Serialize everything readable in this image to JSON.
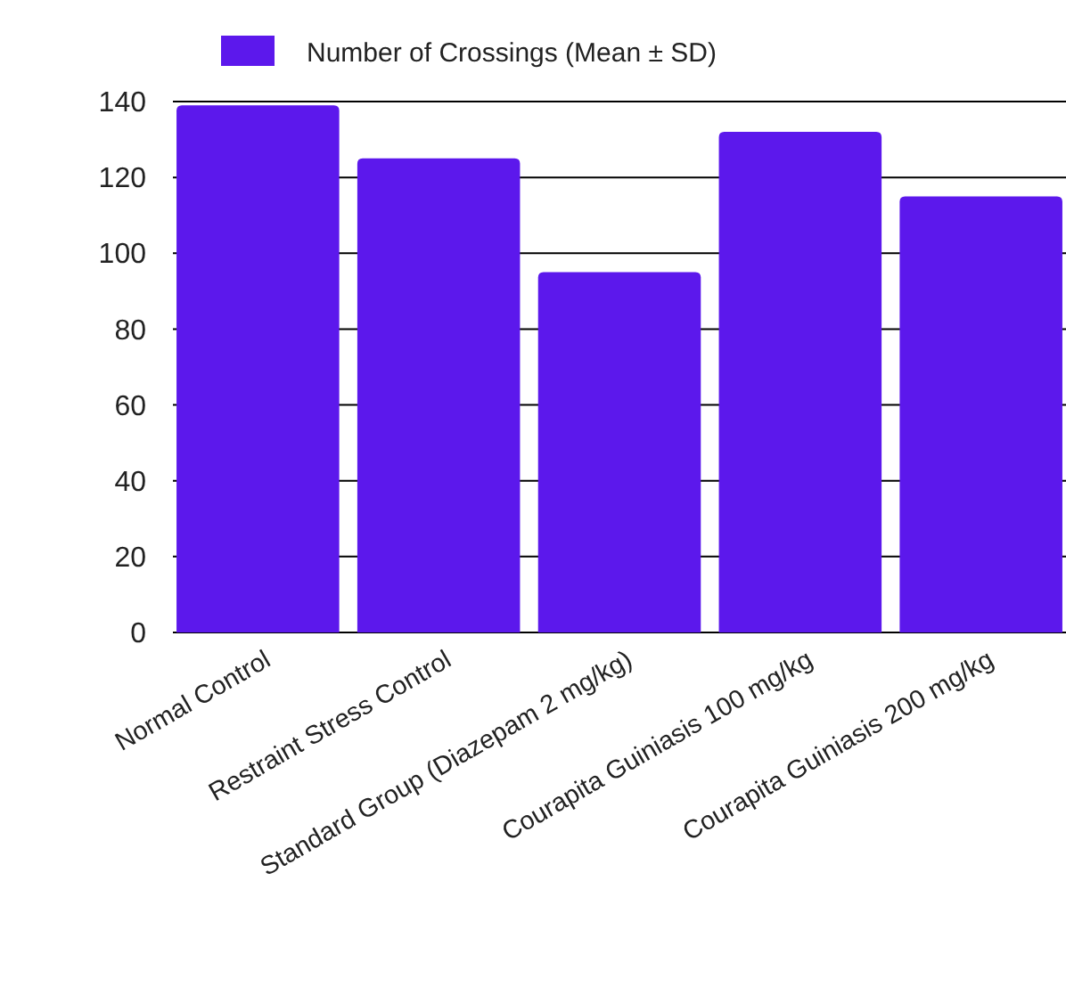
{
  "chart_data": {
    "type": "bar",
    "categories": [
      "Normal Control",
      "Restraint Stress Control",
      "Standard Group (Diazepam 2 mg/kg)",
      "Courapita Guiniasis 100 mg/kg",
      "Courapita Guiniasis 200 mg/kg"
    ],
    "series": [
      {
        "name": "Number of Crossings (Mean ± SD)",
        "color": "#5c18ec",
        "values": [
          139,
          125,
          95,
          132,
          115
        ]
      }
    ],
    "ylim": [
      0,
      140
    ],
    "yticks": [
      0,
      20,
      40,
      60,
      80,
      100,
      120,
      140
    ],
    "grid": "y",
    "legend": "top"
  }
}
